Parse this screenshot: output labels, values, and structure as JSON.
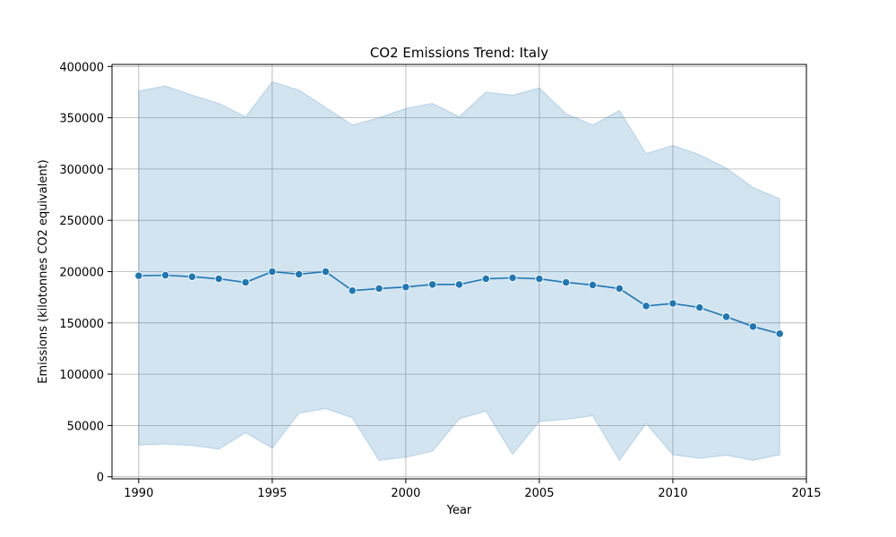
{
  "chart_data": {
    "type": "line",
    "title": "CO2 Emissions Trend: Italy",
    "xlabel": "Year",
    "ylabel": "Emissions (kilotonnes CO2 equivalent)",
    "xlim": [
      1989,
      2015
    ],
    "ylim": [
      -2000,
      402000
    ],
    "xticks": [
      1990,
      1995,
      2000,
      2005,
      2010,
      2015
    ],
    "yticks": [
      0,
      50000,
      100000,
      150000,
      200000,
      250000,
      300000,
      350000,
      400000
    ],
    "grid": true,
    "colors": {
      "line": "#1f77b4",
      "band": "#1f77b4",
      "grid": "#b0b0b0"
    },
    "x": [
      1990,
      1991,
      1992,
      1993,
      1994,
      1995,
      1996,
      1997,
      1998,
      1999,
      2000,
      2001,
      2002,
      2003,
      2004,
      2005,
      2006,
      2007,
      2008,
      2009,
      2010,
      2011,
      2012,
      2013,
      2014
    ],
    "series": [
      {
        "values": [
          196000,
          196500,
          195000,
          193000,
          189500,
          200000,
          197500,
          200000,
          181500,
          183500,
          185000,
          187500,
          187500,
          193000,
          194000,
          193000,
          189500,
          187000,
          183500,
          166500,
          169000,
          165000,
          156000,
          146500,
          139500
        ],
        "upper": [
          376000,
          381000,
          372000,
          364000,
          351000,
          385000,
          377000,
          360000,
          343000,
          350000,
          359000,
          364000,
          351000,
          375000,
          372000,
          379000,
          354000,
          343000,
          357000,
          315000,
          323000,
          314000,
          301000,
          282000,
          271000
        ],
        "lower": [
          31000,
          32000,
          30500,
          27000,
          43000,
          28000,
          62000,
          66500,
          57500,
          16000,
          19000,
          25000,
          56500,
          64000,
          22000,
          54000,
          56000,
          59500,
          16000,
          52000,
          21500,
          18000,
          21000,
          16000,
          21500
        ]
      }
    ]
  }
}
